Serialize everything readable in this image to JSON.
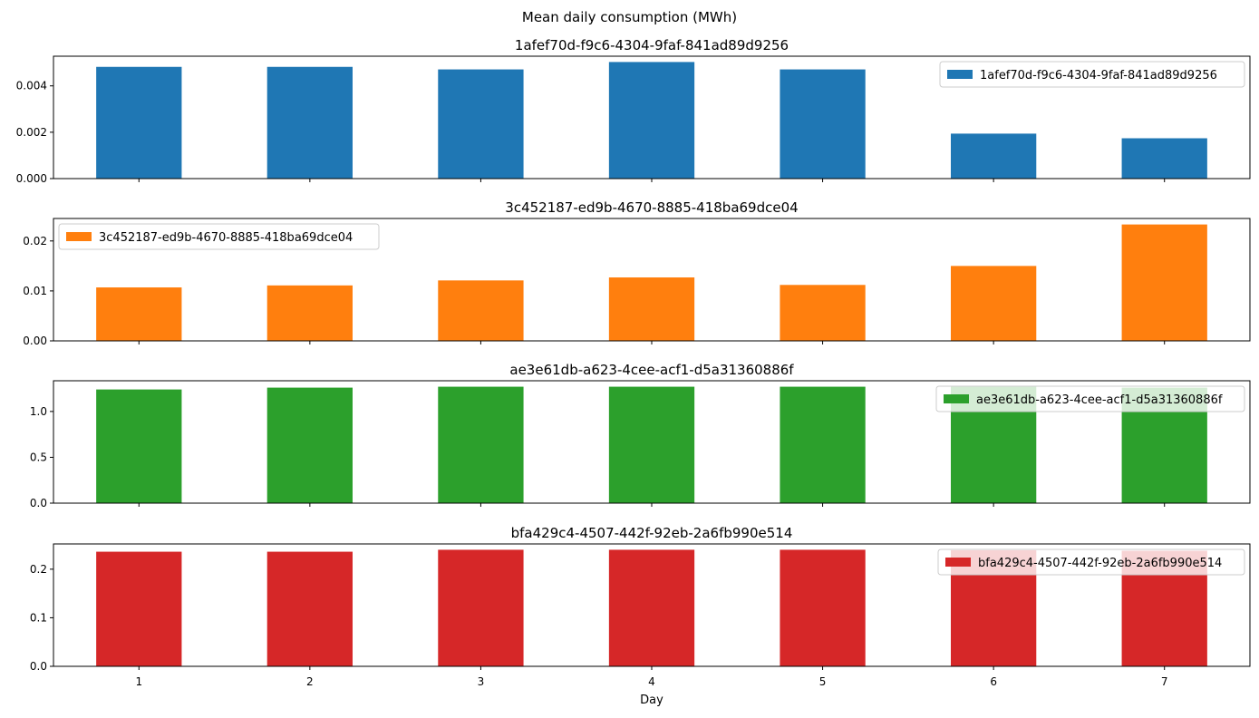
{
  "figure": {
    "suptitle": "Mean daily consumption (MWh)",
    "xlabel": "Day"
  },
  "chart_data": [
    {
      "type": "bar",
      "title": "1afef70d-f9c6-4304-9faf-841ad89d9256",
      "categories": [
        "1",
        "2",
        "3",
        "4",
        "5",
        "6",
        "7"
      ],
      "series": [
        {
          "name": "1afef70d-f9c6-4304-9faf-841ad89d9256",
          "values": [
            0.00482,
            0.00482,
            0.00471,
            0.00503,
            0.00471,
            0.00194,
            0.00174
          ]
        }
      ],
      "color": "#1f77b4",
      "ylim": [
        0,
        0.00528
      ],
      "yticks": [
        0,
        0.002,
        0.004
      ],
      "ytick_labels": [
        "0.000",
        "0.002",
        "0.004"
      ],
      "legend_position": "upper right"
    },
    {
      "type": "bar",
      "title": "3c452187-ed9b-4670-8885-418ba69dce04",
      "categories": [
        "1",
        "2",
        "3",
        "4",
        "5",
        "6",
        "7"
      ],
      "series": [
        {
          "name": "3c452187-ed9b-4670-8885-418ba69dce04",
          "values": [
            0.0107,
            0.0111,
            0.0121,
            0.0127,
            0.0112,
            0.015,
            0.0233
          ]
        }
      ],
      "color": "#ff7f0e",
      "ylim": [
        0,
        0.0245
      ],
      "yticks": [
        0,
        0.01,
        0.02
      ],
      "ytick_labels": [
        "0.00",
        "0.01",
        "0.02"
      ],
      "legend_position": "upper left"
    },
    {
      "type": "bar",
      "title": "ae3e61db-a623-4cee-acf1-d5a31360886f",
      "categories": [
        "1",
        "2",
        "3",
        "4",
        "5",
        "6",
        "7"
      ],
      "series": [
        {
          "name": "ae3e61db-a623-4cee-acf1-d5a31360886f",
          "values": [
            1.24,
            1.26,
            1.27,
            1.27,
            1.27,
            1.27,
            1.26
          ]
        }
      ],
      "color": "#2ca02c",
      "ylim": [
        0,
        1.335
      ],
      "yticks": [
        0,
        0.5,
        1.0
      ],
      "ytick_labels": [
        "0.0",
        "0.5",
        "1.0"
      ],
      "legend_position": "upper right"
    },
    {
      "type": "bar",
      "title": "bfa429c4-4507-442f-92eb-2a6fb990e514",
      "categories": [
        "1",
        "2",
        "3",
        "4",
        "5",
        "6",
        "7"
      ],
      "series": [
        {
          "name": "bfa429c4-4507-442f-92eb-2a6fb990e514",
          "values": [
            0.236,
            0.236,
            0.24,
            0.24,
            0.24,
            0.239,
            0.238
          ]
        }
      ],
      "color": "#d62728",
      "ylim": [
        0,
        0.252
      ],
      "yticks": [
        0,
        0.1,
        0.2
      ],
      "ytick_labels": [
        "0.0",
        "0.1",
        "0.2"
      ],
      "legend_position": "upper right"
    }
  ]
}
